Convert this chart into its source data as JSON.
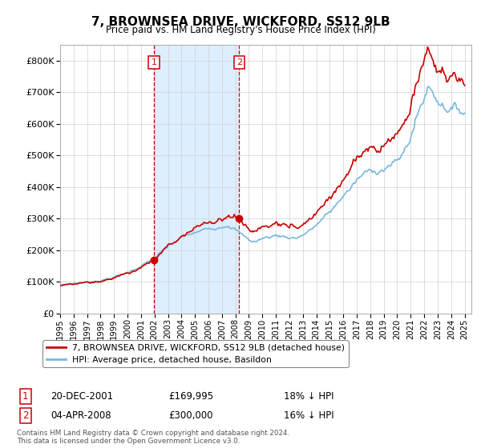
{
  "title": "7, BROWNSEA DRIVE, WICKFORD, SS12 9LB",
  "subtitle": "Price paid vs. HM Land Registry's House Price Index (HPI)",
  "legend_line1": "7, BROWNSEA DRIVE, WICKFORD, SS12 9LB (detached house)",
  "legend_line2": "HPI: Average price, detached house, Basildon",
  "sale1_label": "1",
  "sale1_date": "20-DEC-2001",
  "sale1_price": "£169,995",
  "sale1_hpi": "18% ↓ HPI",
  "sale1_year": 2001.96,
  "sale1_value": 169995,
  "sale2_label": "2",
  "sale2_date": "04-APR-2008",
  "sale2_price": "£300,000",
  "sale2_hpi": "16% ↓ HPI",
  "sale2_year": 2008.27,
  "sale2_value": 300000,
  "footnote1": "Contains HM Land Registry data © Crown copyright and database right 2024.",
  "footnote2": "This data is licensed under the Open Government Licence v3.0.",
  "hpi_color": "#7ab8d9",
  "price_color": "#cc0000",
  "vline_color": "#cc0000",
  "shade_color": "#ddeeff",
  "ylim_min": 0,
  "ylim_max": 850000,
  "xlim_start": 1995.4,
  "xlim_end": 2025.5
}
